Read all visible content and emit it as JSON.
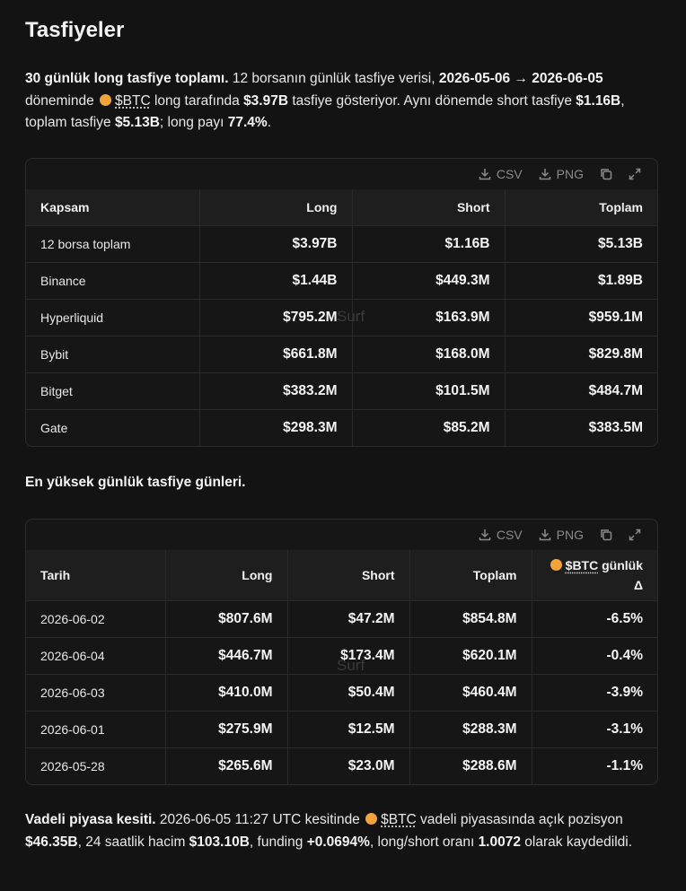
{
  "title": "Tasfiyeler",
  "intro": {
    "parts": [
      "30 günlük long tasfiye toplamı.",
      " 12 borsanın günlük tasfiye verisi, ",
      "2026-05-06 → 2026-06-05",
      " döneminde ",
      "$BTC",
      " long tarafında ",
      "$3.97B",
      " tasfiye gösteriyor. Aynı dönemde short tasfiye ",
      "$1.16B",
      ", toplam tasfiye ",
      "$5.13B",
      "; long payı ",
      "77.4%",
      "."
    ]
  },
  "table1": {
    "toolbar": {
      "csv": "CSV",
      "png": "PNG"
    },
    "watermark": "Surf",
    "headers": [
      "Kapsam",
      "Long",
      "Short",
      "Toplam"
    ],
    "rows": [
      [
        "12 borsa toplam",
        "$3.97B",
        "$1.16B",
        "$5.13B"
      ],
      [
        "Binance",
        "$1.44B",
        "$449.3M",
        "$1.89B"
      ],
      [
        "Hyperliquid",
        "$795.2M",
        "$163.9M",
        "$959.1M"
      ],
      [
        "Bybit",
        "$661.8M",
        "$168.0M",
        "$829.8M"
      ],
      [
        "Bitget",
        "$383.2M",
        "$101.5M",
        "$484.7M"
      ],
      [
        "Gate",
        "$298.3M",
        "$85.2M",
        "$383.5M"
      ]
    ]
  },
  "section_heading": "En yüksek günlük tasfiye günleri.",
  "table2": {
    "toolbar": {
      "csv": "CSV",
      "png": "PNG"
    },
    "watermark": "Surf",
    "headers": [
      "Tarih",
      "Long",
      "Short",
      "Toplam"
    ],
    "delta_header": {
      "ticker": "$BTC",
      "suffix": "günlük Δ"
    },
    "rows": [
      [
        "2026-06-02",
        "$807.6M",
        "$47.2M",
        "$854.8M",
        "-6.5%"
      ],
      [
        "2026-06-04",
        "$446.7M",
        "$173.4M",
        "$620.1M",
        "-0.4%"
      ],
      [
        "2026-06-03",
        "$410.0M",
        "$50.4M",
        "$460.4M",
        "-3.9%"
      ],
      [
        "2026-06-01",
        "$275.9M",
        "$12.5M",
        "$288.3M",
        "-3.1%"
      ],
      [
        "2026-05-28",
        "$265.6M",
        "$23.0M",
        "$288.6M",
        "-1.1%"
      ]
    ]
  },
  "futures": {
    "parts": [
      "Vadeli piyasa kesiti.",
      " 2026-06-05 11:27 UTC kesitinde ",
      "$BTC",
      " vadeli piyasasında açık pozisyon ",
      "$46.35B",
      ", 24 saatlik hacim ",
      "$103.10B",
      ", funding ",
      "+0.0694%",
      ", long/short oranı ",
      "1.0072",
      " olarak kaydedildi."
    ]
  }
}
